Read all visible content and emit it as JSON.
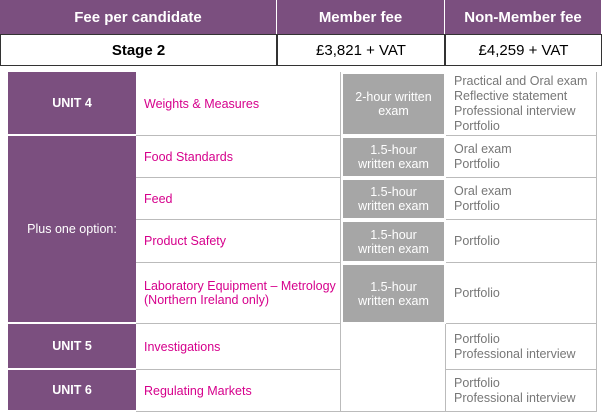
{
  "fee_table": {
    "header": [
      "Fee per candidate",
      "Member fee",
      "Non-Member fee"
    ],
    "rows": [
      [
        "Stage 2",
        "£3,821 + VAT",
        "£4,259 + VAT"
      ]
    ]
  },
  "units_table": {
    "groups": [
      {
        "label": "UNIT 4",
        "rows": [
          {
            "subject": "Weights & Measures",
            "exam": "2-hour written exam",
            "assessment": [
              "Practical and Oral exam",
              "Reflective statement",
              "Professional interview",
              "Portfolio"
            ]
          }
        ]
      },
      {
        "label": "Plus one option:",
        "rows": [
          {
            "subject": "Food Standards",
            "exam": "1.5-hour written exam",
            "assessment": [
              "Oral exam",
              "Portfolio"
            ]
          },
          {
            "subject": "Feed",
            "exam": "1.5-hour written exam",
            "assessment": [
              "Oral exam",
              "Portfolio"
            ]
          },
          {
            "subject": "Product Safety",
            "exam": "1.5-hour written exam",
            "assessment": [
              "Portfolio"
            ]
          },
          {
            "subject": "Laboratory Equipment – Metrology (Northern Ireland only)",
            "exam": "1.5-hour written exam",
            "assessment": [
              "Portfolio"
            ]
          }
        ]
      },
      {
        "label": "UNIT 5",
        "rows": [
          {
            "subject": "Investigations",
            "assessment": [
              "Portfolio",
              "Professional interview"
            ]
          }
        ]
      },
      {
        "label": "UNIT 6",
        "rows": [
          {
            "subject": "Regulating Markets",
            "assessment": [
              "Portfolio",
              "Professional interview"
            ]
          }
        ]
      }
    ]
  }
}
